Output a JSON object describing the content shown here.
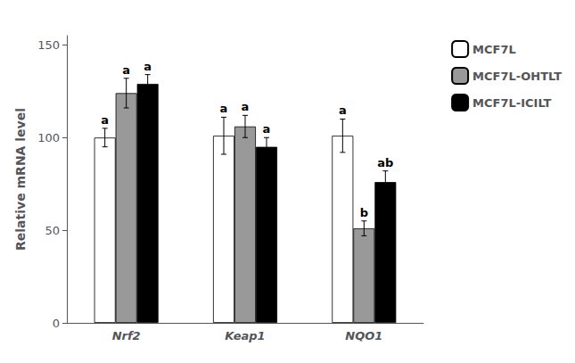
{
  "chart_data": {
    "type": "bar",
    "categories": [
      "Nrf2",
      "Keap1",
      "NQO1"
    ],
    "series": [
      {
        "name": "MCF7L",
        "color": "#ffffff",
        "values": [
          100,
          101,
          101
        ],
        "errors": [
          5,
          10,
          9
        ],
        "annotations": [
          "a",
          "a",
          "a"
        ]
      },
      {
        "name": "MCF7L-OHTLT",
        "color": "#999999",
        "values": [
          124,
          106,
          51
        ],
        "errors": [
          8,
          6,
          4
        ],
        "annotations": [
          "a",
          "a",
          "b"
        ]
      },
      {
        "name": "MCF7L-ICILT",
        "color": "#000000",
        "values": [
          129,
          95,
          76
        ],
        "errors": [
          5,
          5,
          6
        ],
        "annotations": [
          "a",
          "a",
          "ab"
        ]
      }
    ],
    "ylabel": "Relative mRNA level",
    "ylim": [
      0,
      155
    ],
    "yticks": [
      0,
      50,
      100,
      150
    ],
    "grid": false,
    "legend": "upper right"
  }
}
